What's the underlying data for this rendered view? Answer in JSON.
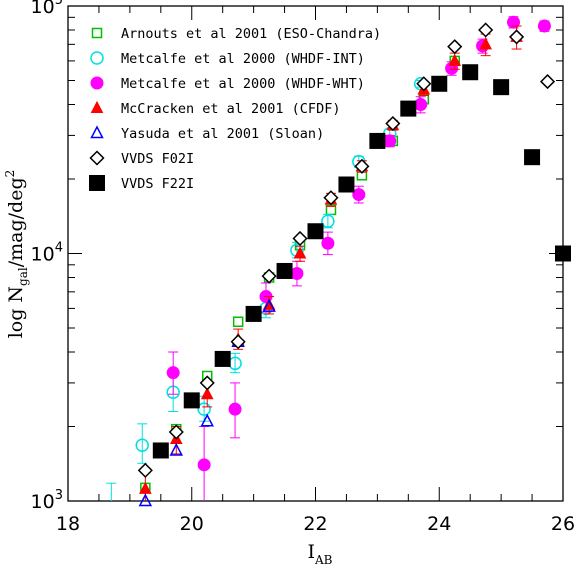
{
  "chart_data": {
    "type": "scatter",
    "xlabel": {
      "main": "I",
      "sub": "AB"
    },
    "ylabel": {
      "pre": "log N",
      "sub": "gal",
      "mid": "/mag/deg",
      "sup": "2"
    },
    "xlim": [
      18,
      26
    ],
    "ylim": [
      1000,
      100000
    ],
    "yscale": "log",
    "xticks": [
      18,
      20,
      22,
      24,
      26
    ],
    "yticks": [
      {
        "value": 1000,
        "base": "10",
        "exp": "3"
      },
      {
        "value": 10000,
        "base": "10",
        "exp": "4"
      },
      {
        "value": 100000,
        "base": "10",
        "exp": "5"
      }
    ],
    "legend_placement": "top-left",
    "series": [
      {
        "name": "Arnouts et al 2001 (ESO-Chandra)",
        "marker": "square-open",
        "color": "#00c000",
        "points": [
          {
            "x": 19.25,
            "y": 1130
          },
          {
            "x": 19.75,
            "y": 1950
          },
          {
            "x": 20.25,
            "y": 3200
          },
          {
            "x": 20.75,
            "y": 5300
          },
          {
            "x": 21.25,
            "y": 8000
          },
          {
            "x": 21.75,
            "y": 10800
          },
          {
            "x": 22.25,
            "y": 15000
          },
          {
            "x": 22.75,
            "y": 20700
          },
          {
            "x": 23.25,
            "y": 28500
          },
          {
            "x": 23.75,
            "y": 42000
          },
          {
            "x": 24.25,
            "y": 60000
          }
        ]
      },
      {
        "name": "Metcalfe et al 2000 (WHDF-INT)",
        "marker": "circle-open",
        "color": "#00e0e0",
        "points": [
          {
            "x": 18.7,
            "y": 920,
            "lo": 780,
            "hi": 1180
          },
          {
            "x": 19.2,
            "y": 1680,
            "lo": 1420,
            "hi": 2050
          },
          {
            "x": 19.7,
            "y": 2750,
            "lo": 2300,
            "hi": 3200
          },
          {
            "x": 20.2,
            "y": 2350,
            "lo": 2100,
            "hi": 2650
          },
          {
            "x": 20.7,
            "y": 3600,
            "lo": 3300,
            "hi": 3950
          },
          {
            "x": 21.2,
            "y": 6000,
            "lo": 5500,
            "hi": 6600
          },
          {
            "x": 21.7,
            "y": 10300,
            "lo": 9600,
            "hi": 11100
          },
          {
            "x": 22.2,
            "y": 13500,
            "lo": 12700,
            "hi": 14400
          },
          {
            "x": 22.7,
            "y": 23500,
            "lo": 22300,
            "hi": 24700
          },
          {
            "x": 23.2,
            "y": 30500,
            "lo": 29200,
            "hi": 31800
          },
          {
            "x": 23.7,
            "y": 48500,
            "lo": 47000,
            "hi": 50000
          }
        ]
      },
      {
        "name": "Metcalfe et al 2000 (WHDF-WHT)",
        "marker": "circle-filled",
        "color": "#ff00ff",
        "points": [
          {
            "x": 19.7,
            "y": 3300,
            "lo": 2700,
            "hi": 4000
          },
          {
            "x": 20.2,
            "y": 1400,
            "lo": 950,
            "hi": 2000
          },
          {
            "x": 20.7,
            "y": 2350,
            "lo": 1800,
            "hi": 3000
          },
          {
            "x": 21.2,
            "y": 6700,
            "lo": 5800,
            "hi": 7600
          },
          {
            "x": 21.7,
            "y": 8300,
            "lo": 7400,
            "hi": 9300
          },
          {
            "x": 22.2,
            "y": 11000,
            "lo": 9900,
            "hi": 12200
          },
          {
            "x": 22.7,
            "y": 17300,
            "lo": 16000,
            "hi": 18700
          },
          {
            "x": 23.2,
            "y": 28500,
            "lo": 27000,
            "hi": 30000
          },
          {
            "x": 23.7,
            "y": 40000,
            "lo": 37000,
            "hi": 43000
          },
          {
            "x": 24.2,
            "y": 56000,
            "lo": 52500,
            "hi": 59500
          },
          {
            "x": 24.7,
            "y": 69000,
            "lo": 64500,
            "hi": 73500
          },
          {
            "x": 25.2,
            "y": 86000,
            "lo": 81500,
            "hi": 90500
          },
          {
            "x": 25.7,
            "y": 83000,
            "lo": 79000,
            "hi": 87000
          }
        ]
      },
      {
        "name": "McCracken et al 2001 (CFDF)",
        "marker": "triangle-filled",
        "color": "#ff0000",
        "points": [
          {
            "x": 19.25,
            "y": 1120,
            "lo": 960,
            "hi": 1300
          },
          {
            "x": 19.75,
            "y": 1780,
            "lo": 1550,
            "hi": 2000
          },
          {
            "x": 20.25,
            "y": 2700,
            "lo": 2400,
            "hi": 3000
          },
          {
            "x": 20.75,
            "y": 4500,
            "lo": 4100,
            "hi": 4950
          },
          {
            "x": 21.25,
            "y": 6200,
            "lo": 5700,
            "hi": 6700
          },
          {
            "x": 21.75,
            "y": 10000,
            "lo": 9300,
            "hi": 10700
          },
          {
            "x": 22.25,
            "y": 16500,
            "lo": 15500,
            "hi": 17500
          },
          {
            "x": 22.75,
            "y": 22500,
            "lo": 21300,
            "hi": 23700
          },
          {
            "x": 23.25,
            "y": 33000,
            "lo": 31500,
            "hi": 34500
          },
          {
            "x": 23.75,
            "y": 46000,
            "lo": 43500,
            "hi": 48500
          },
          {
            "x": 24.25,
            "y": 60000,
            "lo": 55500,
            "hi": 64500
          },
          {
            "x": 24.75,
            "y": 70000,
            "lo": 63000,
            "hi": 77000
          },
          {
            "x": 25.25,
            "y": 75000,
            "lo": 67000,
            "hi": 83000
          }
        ]
      },
      {
        "name": "Yasuda et al 2001 (Sloan)",
        "marker": "triangle-open",
        "color": "#0000ff",
        "points": [
          {
            "x": 19.25,
            "y": 1000
          },
          {
            "x": 19.75,
            "y": 1600
          },
          {
            "x": 20.25,
            "y": 2100
          },
          {
            "x": 20.75,
            "y": 4400
          },
          {
            "x": 21.25,
            "y": 6100
          }
        ]
      },
      {
        "name": "VVDS F02I",
        "marker": "diamond-open",
        "color": "#000000",
        "points": [
          {
            "x": 19.25,
            "y": 1330
          },
          {
            "x": 19.75,
            "y": 1900
          },
          {
            "x": 20.25,
            "y": 3000
          },
          {
            "x": 20.75,
            "y": 4400
          },
          {
            "x": 21.25,
            "y": 8100
          },
          {
            "x": 21.75,
            "y": 11500
          },
          {
            "x": 22.25,
            "y": 16800
          },
          {
            "x": 22.75,
            "y": 22500
          },
          {
            "x": 23.25,
            "y": 33500
          },
          {
            "x": 23.75,
            "y": 48500
          },
          {
            "x": 24.25,
            "y": 68500
          },
          {
            "x": 24.75,
            "y": 80000
          },
          {
            "x": 25.25,
            "y": 75000
          },
          {
            "x": 25.75,
            "y": 49500
          }
        ]
      },
      {
        "name": "VVDS F22I",
        "marker": "square-filled",
        "color": "#000000",
        "points": [
          {
            "x": 19.5,
            "y": 1600
          },
          {
            "x": 20.0,
            "y": 2550
          },
          {
            "x": 20.5,
            "y": 3750
          },
          {
            "x": 21.0,
            "y": 5700
          },
          {
            "x": 21.5,
            "y": 8500
          },
          {
            "x": 22.0,
            "y": 12300
          },
          {
            "x": 22.5,
            "y": 19000
          },
          {
            "x": 23.0,
            "y": 28500
          },
          {
            "x": 23.5,
            "y": 38500
          },
          {
            "x": 24.0,
            "y": 48500
          },
          {
            "x": 24.5,
            "y": 54000
          },
          {
            "x": 25.0,
            "y": 47000
          },
          {
            "x": 25.5,
            "y": 24500
          },
          {
            "x": 26.0,
            "y": 10000
          }
        ]
      }
    ]
  }
}
